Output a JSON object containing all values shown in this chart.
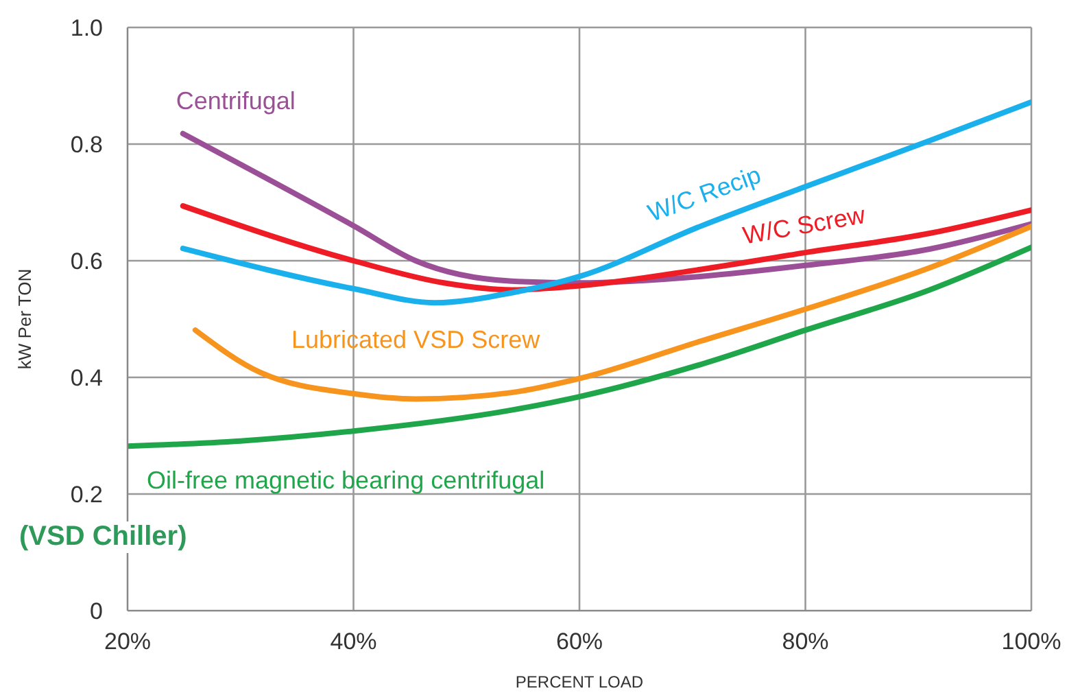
{
  "chart_data": {
    "type": "line",
    "xlabel": "PERCENT LOAD",
    "ylabel": "kW Per TON",
    "xlim": [
      20,
      100
    ],
    "xticks": [
      {
        "value": 20,
        "label": "20%"
      },
      {
        "value": 40,
        "label": "40%"
      },
      {
        "value": 60,
        "label": "60%"
      },
      {
        "value": 80,
        "label": "80%"
      },
      {
        "value": 100,
        "label": "100%"
      }
    ],
    "ylim": [
      0,
      1
    ],
    "yticks": [
      0,
      0.2,
      0.4,
      0.6,
      0.8,
      {
        "value": 1,
        "label": "1.0"
      }
    ],
    "grid": true,
    "marker": "none",
    "line_style": "solid",
    "annotations": [
      "(VSD Chiller)"
    ],
    "series": [
      {
        "name": "Centrifugal",
        "color": "#9b4f96",
        "x": [
          24.9,
          40,
          45.5,
          54,
          60,
          70.7,
          80,
          91,
          100
        ],
        "values": [
          0.818,
          0.66,
          0.6,
          0.565,
          0.562,
          0.573,
          0.592,
          0.62,
          0.663
        ]
      },
      {
        "name": "W/C Screw",
        "color": "#ee1c25",
        "x": [
          24.9,
          40,
          48,
          54,
          60,
          70.7,
          80,
          91,
          100
        ],
        "values": [
          0.694,
          0.6,
          0.562,
          0.55,
          0.557,
          0.585,
          0.614,
          0.647,
          0.687
        ]
      },
      {
        "name": "W/C Recip",
        "color": "#1ab0ec",
        "x": [
          24.9,
          40,
          47.2,
          54,
          60,
          70.7,
          80,
          91,
          100
        ],
        "values": [
          0.621,
          0.552,
          0.528,
          0.545,
          0.573,
          0.659,
          0.727,
          0.806,
          0.872
        ]
      },
      {
        "name": "Lubricated VSD Screw",
        "color": "#f7941d",
        "x": [
          26,
          31.8,
          40,
          45.5,
          54,
          60,
          70.7,
          80,
          91,
          100
        ],
        "values": [
          0.481,
          0.408,
          0.372,
          0.363,
          0.374,
          0.398,
          0.462,
          0.517,
          0.588,
          0.659
        ]
      },
      {
        "name": "Oil-free magnetic bearing centrifugal",
        "color": "#1fa64a",
        "x": [
          20,
          30,
          40,
          54,
          60,
          70.7,
          80,
          91,
          100
        ],
        "values": [
          0.282,
          0.291,
          0.308,
          0.344,
          0.367,
          0.422,
          0.481,
          0.55,
          0.623
        ]
      }
    ]
  }
}
